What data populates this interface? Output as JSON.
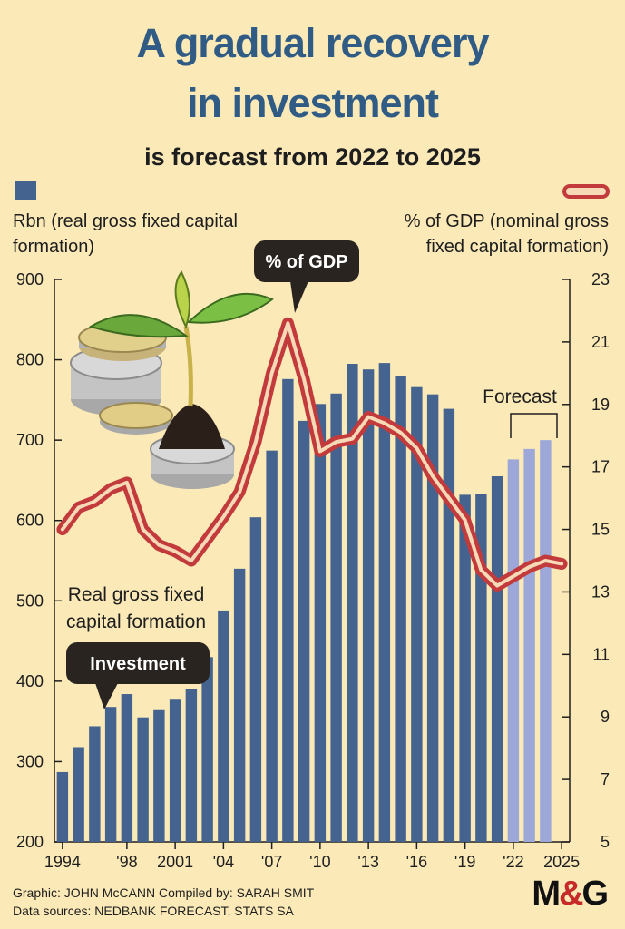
{
  "header": {
    "title_line1": "A gradual recovery",
    "title_line2": "in investment",
    "subtitle": "is forecast from 2022 to 2025"
  },
  "labels": {
    "left_axis": "Rbn (real gross fixed capital formation)",
    "right_axis": "% of GDP (nominal gross fixed capital formation)",
    "callout_gdp": "% of GDP",
    "callout_investment": "Investment",
    "forecast": "Forecast",
    "series_bar_line1": "Real gross fixed",
    "series_bar_line2": "capital formation"
  },
  "footer": {
    "credit": "Graphic: JOHN McCANN  Compiled by: SARAH SMIT",
    "sources": "Data sources: NEDBANK FORECAST, STATS SA",
    "logo_left": "M",
    "logo_amp": "&",
    "logo_right": "G"
  },
  "colors": {
    "background": "#fbeab8",
    "bar": "#44648f",
    "bar_forecast": "#9da8d8",
    "line_outer": "#c23a3b",
    "line_inner": "#f6d9b6",
    "title": "#2f5b84"
  },
  "chart_data": {
    "type": "bar",
    "title": "A gradual recovery in investment",
    "subtitle": "is forecast from 2022 to 2025",
    "x": [
      1994,
      1995,
      1996,
      1997,
      1998,
      1999,
      2000,
      2001,
      2002,
      2003,
      2004,
      2005,
      2006,
      2007,
      2008,
      2009,
      2010,
      2011,
      2012,
      2013,
      2014,
      2015,
      2016,
      2017,
      2018,
      2019,
      2020,
      2021,
      2022,
      2023,
      2024,
      2025
    ],
    "x_tick_labels": [
      "1994",
      "'98",
      "2001",
      "'04",
      "'07",
      "'10",
      "'13",
      "'16",
      "'19",
      "'22",
      "2025"
    ],
    "x_tick_years": [
      1994,
      1998,
      2001,
      2004,
      2007,
      2010,
      2013,
      2016,
      2019,
      2022,
      2025
    ],
    "series": [
      {
        "name": "Real gross fixed capital formation",
        "kind": "bar",
        "axis": "left",
        "values": [
          287,
          318,
          344,
          368,
          384,
          355,
          364,
          377,
          390,
          430,
          488,
          540,
          604,
          687,
          776,
          724,
          745,
          758,
          795,
          788,
          796,
          780,
          766,
          757,
          739,
          632,
          633,
          655,
          676,
          689,
          700,
          null
        ],
        "forecast_from": 2022
      },
      {
        "name": "% of GDP",
        "kind": "line",
        "axis": "right",
        "values": [
          15.0,
          15.7,
          15.9,
          16.3,
          16.5,
          15.0,
          14.5,
          14.3,
          14.0,
          14.7,
          15.4,
          16.2,
          17.8,
          20.0,
          21.6,
          19.8,
          17.5,
          17.8,
          17.9,
          18.6,
          18.4,
          18.1,
          17.6,
          16.7,
          16.0,
          15.3,
          13.7,
          13.2,
          13.5,
          13.8,
          14.0,
          13.9
        ]
      }
    ],
    "ylabel_left": "Rbn (real gross fixed capital formation)",
    "ylim_left": [
      200,
      900
    ],
    "yticks_left": [
      200,
      300,
      400,
      500,
      600,
      700,
      800,
      900
    ],
    "ylabel_right": "% of GDP (nominal gross fixed capital formation)",
    "ylim_right": [
      5,
      23
    ],
    "yticks_right": [
      5,
      7,
      9,
      11,
      13,
      15,
      17,
      19,
      21,
      23
    ],
    "grid": false,
    "legend": "top"
  }
}
